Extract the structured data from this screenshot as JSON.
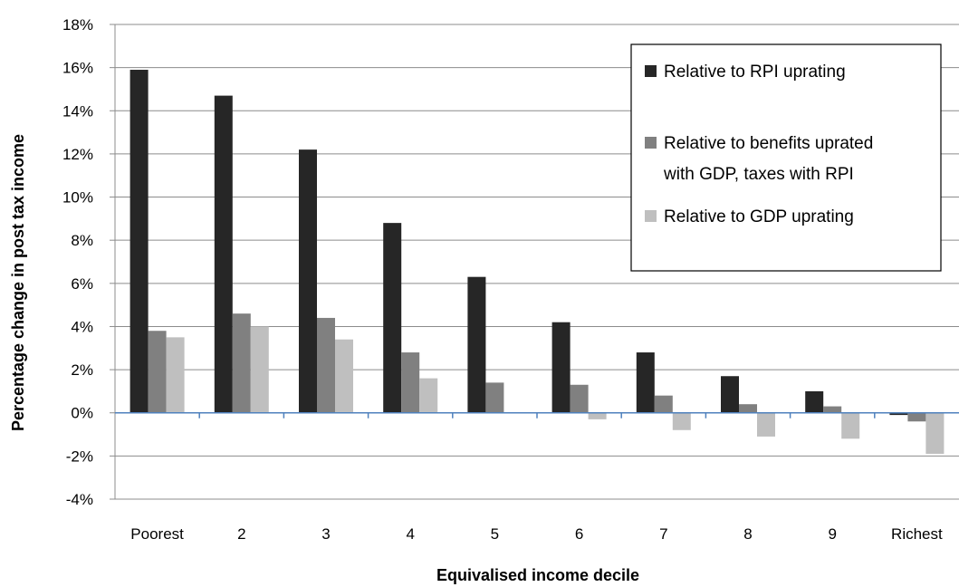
{
  "chart_data": {
    "type": "bar",
    "xlabel": "Equivalised income decile",
    "ylabel": "Percentage change in post tax income",
    "categories": [
      "Poorest",
      "2",
      "3",
      "4",
      "5",
      "6",
      "7",
      "8",
      "9",
      "Richest"
    ],
    "ylim": [
      -4,
      18
    ],
    "yticks": [
      -4,
      -2,
      0,
      2,
      4,
      6,
      8,
      10,
      12,
      14,
      16,
      18
    ],
    "ytick_labels": [
      "-4%",
      "-2%",
      "0%",
      "2%",
      "4%",
      "6%",
      "8%",
      "10%",
      "12%",
      "14%",
      "16%",
      "18%"
    ],
    "grid": true,
    "legend_position": "top-right",
    "series": [
      {
        "name": "Relative to RPI uprating",
        "color": "#262626",
        "values": [
          15.9,
          14.7,
          12.2,
          8.8,
          6.3,
          4.2,
          2.8,
          1.7,
          1.0,
          -0.1
        ]
      },
      {
        "name": "Relative to benefits uprated with GDP, taxes with RPI",
        "color": "#808080",
        "values": [
          3.8,
          4.6,
          4.4,
          2.8,
          1.4,
          1.3,
          0.8,
          0.4,
          0.3,
          -0.4
        ]
      },
      {
        "name": "Relative to GDP uprating",
        "color": "#bfbfbf",
        "values": [
          3.5,
          4.0,
          3.4,
          1.6,
          0.0,
          -0.3,
          -0.8,
          -1.1,
          -1.2,
          -1.9
        ]
      }
    ],
    "legend_lines": [
      [
        "Relative to RPI uprating"
      ],
      [
        "Relative to benefits uprated",
        "with GDP, taxes with RPI"
      ],
      [
        "Relative to GDP uprating"
      ]
    ],
    "colors": {
      "gridline": "#8c8c8c",
      "zero_line": "#4f81bd",
      "axis": "#8c8c8c"
    }
  }
}
